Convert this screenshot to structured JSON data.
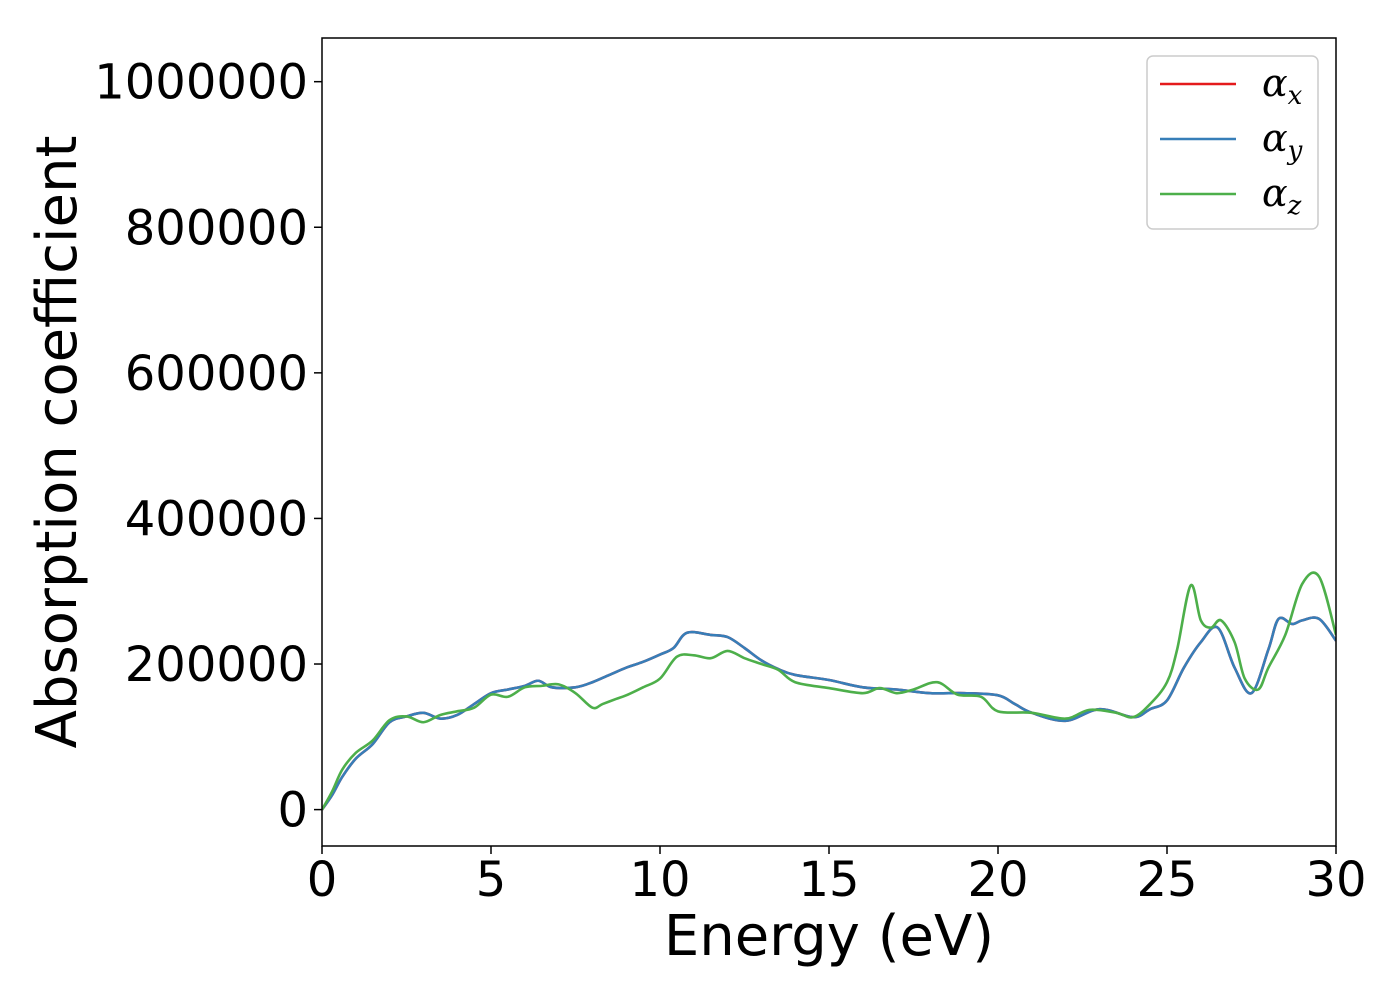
{
  "chart_data": {
    "type": "line",
    "xlabel": "Energy (eV)",
    "ylabel": "Absorption coefficient",
    "xlim": [
      0,
      30
    ],
    "ylim": [
      -50000,
      1060000
    ],
    "x_ticks": [
      0,
      5,
      10,
      15,
      20,
      25,
      30
    ],
    "y_ticks": [
      0,
      200000,
      400000,
      600000,
      800000,
      1000000
    ],
    "x_tick_labels": [
      "0",
      "5",
      "10",
      "15",
      "20",
      "25",
      "30"
    ],
    "y_tick_labels": [
      "0",
      "200000",
      "400000",
      "600000",
      "800000",
      "1000000"
    ],
    "grid": false,
    "legend_position": "top-right",
    "series": [
      {
        "name": "αx",
        "legend_base": "α",
        "legend_sub": "x",
        "color": "#e41a1c",
        "x": [
          0,
          0.3,
          0.6,
          1.0,
          1.5,
          2.0,
          2.5,
          3.0,
          3.5,
          4.0,
          4.5,
          5.0,
          5.5,
          6.0,
          6.4,
          6.8,
          7.5,
          8.0,
          8.5,
          9.0,
          9.5,
          10.0,
          10.4,
          10.8,
          11.5,
          12.0,
          12.5,
          13.0,
          13.5,
          14.0,
          15.0,
          16.0,
          17.0,
          18.0,
          19.0,
          20.0,
          20.5,
          21.0,
          22.0,
          23.0,
          24.0,
          24.5,
          25.0,
          25.5,
          26.0,
          26.5,
          27.0,
          27.5,
          28.0,
          28.3,
          28.7,
          29.0,
          29.5,
          30.0
        ],
        "y": [
          0,
          20000,
          45000,
          70000,
          90000,
          120000,
          128000,
          133000,
          125000,
          130000,
          145000,
          160000,
          165000,
          170000,
          177000,
          168000,
          168000,
          175000,
          185000,
          195000,
          203000,
          213000,
          222000,
          243000,
          240000,
          237000,
          222000,
          205000,
          193000,
          185000,
          178000,
          168000,
          165000,
          160000,
          160000,
          157000,
          145000,
          133000,
          122000,
          138000,
          127000,
          138000,
          150000,
          195000,
          230000,
          250000,
          195000,
          160000,
          220000,
          262000,
          255000,
          260000,
          262000,
          232000
        ]
      },
      {
        "name": "αy",
        "legend_base": "α",
        "legend_sub": "y",
        "color": "#377eb8",
        "x": [
          0,
          0.3,
          0.6,
          1.0,
          1.5,
          2.0,
          2.5,
          3.0,
          3.5,
          4.0,
          4.5,
          5.0,
          5.5,
          6.0,
          6.4,
          6.8,
          7.5,
          8.0,
          8.5,
          9.0,
          9.5,
          10.0,
          10.4,
          10.8,
          11.5,
          12.0,
          12.5,
          13.0,
          13.5,
          14.0,
          15.0,
          16.0,
          17.0,
          18.0,
          19.0,
          20.0,
          20.5,
          21.0,
          22.0,
          23.0,
          24.0,
          24.5,
          25.0,
          25.5,
          26.0,
          26.5,
          27.0,
          27.5,
          28.0,
          28.3,
          28.7,
          29.0,
          29.5,
          30.0
        ],
        "y": [
          0,
          20000,
          45000,
          70000,
          90000,
          120000,
          128000,
          133000,
          125000,
          130000,
          145000,
          160000,
          165000,
          170000,
          177000,
          168000,
          168000,
          175000,
          185000,
          195000,
          203000,
          213000,
          222000,
          243000,
          240000,
          237000,
          222000,
          205000,
          193000,
          185000,
          178000,
          168000,
          165000,
          160000,
          160000,
          157000,
          145000,
          133000,
          122000,
          138000,
          127000,
          138000,
          150000,
          195000,
          230000,
          250000,
          195000,
          160000,
          220000,
          262000,
          255000,
          260000,
          262000,
          232000
        ]
      },
      {
        "name": "αz",
        "legend_base": "α",
        "legend_sub": "z",
        "color": "#4daf4a",
        "x": [
          0,
          0.3,
          0.6,
          1.0,
          1.5,
          2.0,
          2.5,
          3.0,
          3.5,
          4.0,
          4.5,
          5.0,
          5.5,
          6.0,
          6.5,
          7.0,
          7.5,
          8.0,
          8.3,
          8.7,
          9.0,
          9.5,
          10.0,
          10.5,
          11.0,
          11.5,
          12.0,
          12.5,
          13.0,
          13.5,
          14.0,
          15.0,
          16.0,
          16.5,
          17.0,
          17.5,
          18.2,
          18.8,
          19.5,
          20.0,
          21.0,
          22.0,
          22.7,
          23.5,
          24.0,
          24.5,
          25.0,
          25.3,
          25.7,
          26.0,
          26.3,
          26.6,
          27.0,
          27.3,
          27.7,
          28.0,
          28.5,
          29.0,
          29.5,
          30.0
        ],
        "y": [
          0,
          25000,
          55000,
          78000,
          95000,
          123000,
          128000,
          120000,
          130000,
          135000,
          140000,
          158000,
          155000,
          168000,
          170000,
          172000,
          160000,
          140000,
          145000,
          152000,
          157000,
          168000,
          180000,
          210000,
          212000,
          208000,
          218000,
          208000,
          200000,
          192000,
          175000,
          167000,
          160000,
          167000,
          160000,
          165000,
          175000,
          158000,
          155000,
          135000,
          133000,
          125000,
          137000,
          133000,
          127000,
          145000,
          175000,
          220000,
          308000,
          260000,
          250000,
          260000,
          230000,
          180000,
          165000,
          195000,
          240000,
          310000,
          320000,
          240000
        ]
      }
    ]
  }
}
